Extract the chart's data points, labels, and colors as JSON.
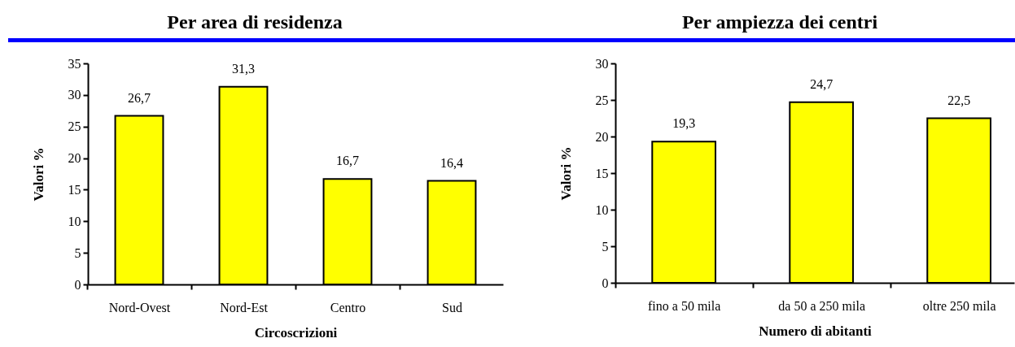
{
  "chart_data": [
    {
      "type": "bar",
      "title": "Per area di residenza",
      "xlabel": "Circoscrizioni",
      "ylabel": "Valori %",
      "categories": [
        "Nord-Ovest",
        "Nord-Est",
        "Centro",
        "Sud"
      ],
      "values": [
        26.7,
        31.3,
        16.7,
        16.4
      ],
      "value_labels": [
        "26,7",
        "31,3",
        "16,7",
        "16,4"
      ],
      "color": "#ffff00",
      "ylim": [
        0,
        35
      ],
      "yticks": [
        0,
        5,
        10,
        15,
        20,
        25,
        30,
        35
      ]
    },
    {
      "type": "bar",
      "title": "Per ampiezza dei centri",
      "xlabel": "Numero di abitanti",
      "ylabel": "Valori %",
      "categories": [
        "fino a 50 mila",
        "da 50 a 250 mila",
        "oltre 250 mila"
      ],
      "values": [
        19.3,
        24.7,
        22.5
      ],
      "value_labels": [
        "19,3",
        "24,7",
        "22,5"
      ],
      "color": "#ffff00",
      "ylim": [
        0,
        30
      ],
      "yticks": [
        0,
        5,
        10,
        15,
        20,
        25,
        30
      ]
    }
  ]
}
